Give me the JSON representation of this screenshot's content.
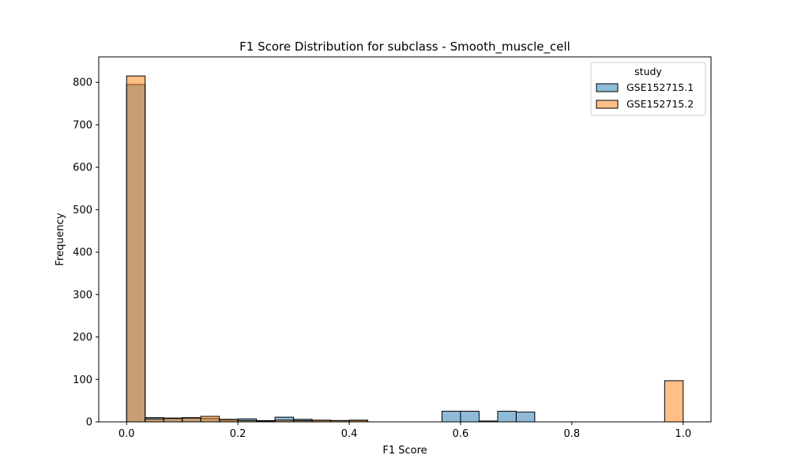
{
  "chart_data": {
    "type": "bar",
    "title": "F1 Score Distribution for subclass - Smooth_muscle_cell",
    "xlabel": "F1 Score",
    "ylabel": "Frequency",
    "xlim": [
      -0.05,
      1.05
    ],
    "ylim": [
      0,
      860
    ],
    "xticks": [
      0.0,
      0.2,
      0.4,
      0.6,
      0.8,
      1.0
    ],
    "xtick_labels": [
      "0.0",
      "0.2",
      "0.4",
      "0.6",
      "0.8",
      "1.0"
    ],
    "yticks": [
      0,
      100,
      200,
      300,
      400,
      500,
      600,
      700,
      800
    ],
    "ytick_labels": [
      "0",
      "100",
      "200",
      "300",
      "400",
      "500",
      "600",
      "700",
      "800"
    ],
    "bin_width": 0.03333,
    "bin_starts": [
      0.0,
      0.0333,
      0.0667,
      0.1,
      0.1333,
      0.1667,
      0.2,
      0.2333,
      0.2667,
      0.3,
      0.3333,
      0.3667,
      0.4,
      0.4333,
      0.4667,
      0.5,
      0.5333,
      0.5667,
      0.6,
      0.6333,
      0.6667,
      0.7,
      0.7333,
      0.7667,
      0.8,
      0.8333,
      0.8667,
      0.9,
      0.9333,
      0.9667
    ],
    "legend_title": "study",
    "legend_position": "upper right",
    "series": [
      {
        "name": "GSE152715.1",
        "color": "#1f77b4",
        "values": [
          795,
          10,
          9,
          10,
          8,
          4,
          7,
          3,
          11,
          6,
          3,
          3,
          3,
          0,
          0,
          0,
          0,
          25,
          25,
          2,
          25,
          23,
          0,
          0,
          0,
          0,
          0,
          0,
          0,
          0
        ]
      },
      {
        "name": "GSE152715.2",
        "color": "#ff7f0e",
        "values": [
          815,
          7,
          8,
          9,
          13,
          6,
          3,
          2,
          4,
          3,
          4,
          3,
          4,
          0,
          0,
          0,
          0,
          0,
          0,
          0,
          0,
          0,
          0,
          0,
          0,
          0,
          0,
          0,
          0,
          97
        ]
      }
    ]
  }
}
